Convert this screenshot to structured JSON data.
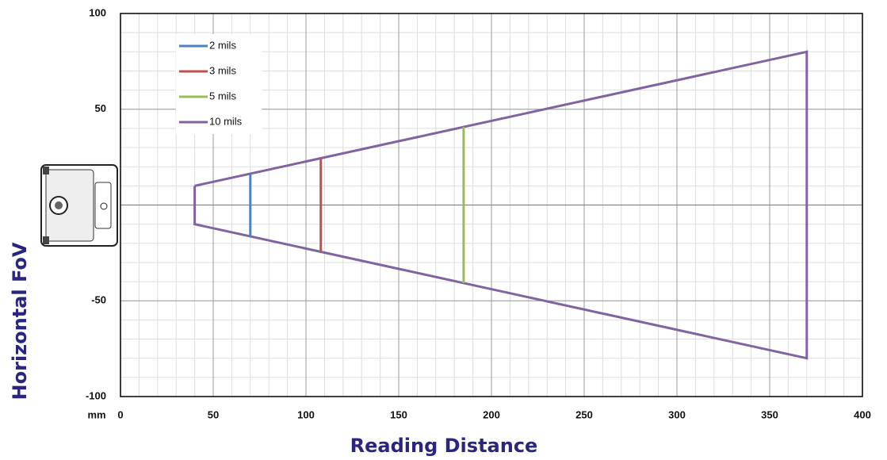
{
  "chart_data": {
    "type": "line",
    "x_label": "Reading Distance",
    "y_label": "Horizontal FoV",
    "x_unit": "mm",
    "xlim": [
      0,
      400
    ],
    "xticks": [
      0,
      50,
      100,
      150,
      200,
      250,
      300,
      350,
      400
    ],
    "ylim": [
      -100,
      100
    ],
    "yticks": [
      -100,
      -50,
      50,
      100
    ],
    "grid": true,
    "legend": "upper-left",
    "series": [
      {
        "name": "2 mils",
        "color": "#4f81bd",
        "x": [
          70,
          70
        ],
        "values": [
          16.4,
          -16.4
        ]
      },
      {
        "name": "3 mils",
        "color": "#c0504d",
        "x": [
          108,
          108
        ],
        "values": [
          24.4,
          -24.4
        ]
      },
      {
        "name": "5 mils",
        "color": "#9bbb59",
        "x": [
          185,
          185
        ],
        "values": [
          40.8,
          -40.8
        ]
      },
      {
        "name": "10 mils",
        "color": "#8064a2",
        "x": [
          40,
          370,
          370,
          40,
          40
        ],
        "values": [
          10,
          80,
          -80,
          -10,
          10
        ]
      }
    ]
  }
}
